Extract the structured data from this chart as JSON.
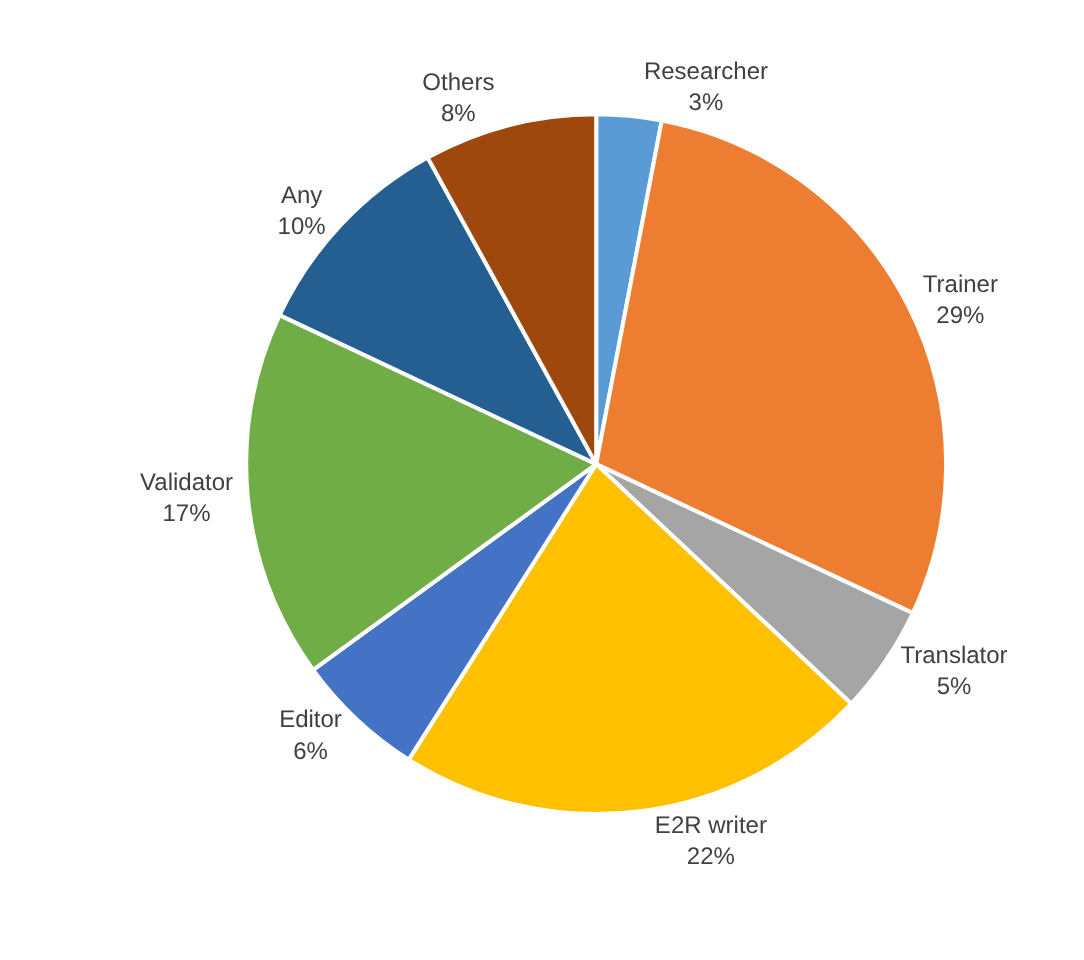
{
  "chart_data": {
    "type": "pie",
    "categories": [
      "Researcher",
      "Trainer",
      "Translator",
      "E2R writer",
      "Editor",
      "Validator",
      "Any",
      "Others"
    ],
    "values": [
      3,
      29,
      5,
      22,
      6,
      17,
      10,
      8
    ],
    "value_labels": [
      "3%",
      "29%",
      "5%",
      "22%",
      "6%",
      "17%",
      "10%",
      "8%"
    ],
    "colors": [
      "#5b9bd5",
      "#ed7d31",
      "#a5a5a5",
      "#ffc000",
      "#4472c4",
      "#70ad47",
      "#255e91",
      "#9e480e"
    ],
    "legend": false
  }
}
